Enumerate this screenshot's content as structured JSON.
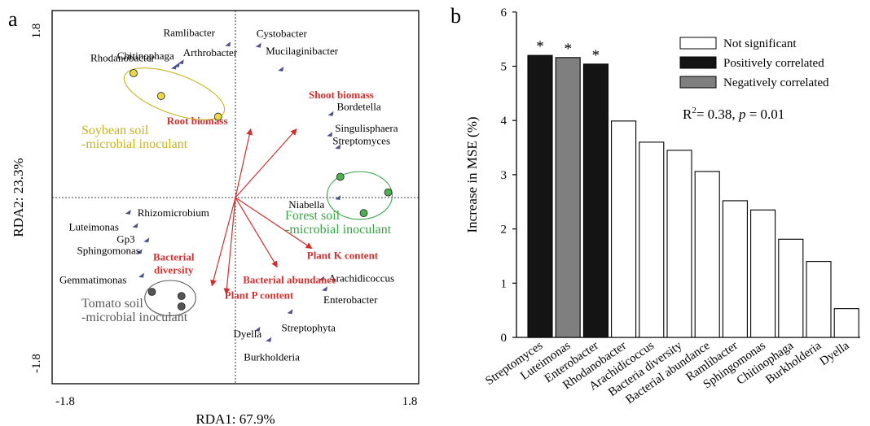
{
  "chart_data": [
    {
      "panel_label": "a",
      "type": "scatter",
      "xlabel": "RDA1: 67.9%",
      "ylabel": "RDA2: 23.3%",
      "xlim": [
        -1.8,
        1.8
      ],
      "ylim": [
        -1.8,
        1.8
      ],
      "x_ticks": [
        "-1.8",
        "1.8"
      ],
      "y_ticks": [
        "1.8",
        "-1.8"
      ],
      "grid": false,
      "reference_lines": [
        0,
        0
      ],
      "taxa": [
        {
          "name": "Ramlibacter",
          "x": -0.07,
          "y": 1.48
        },
        {
          "name": "Cystobacter",
          "x": 0.23,
          "y": 1.47
        },
        {
          "name": "Chitinophaga",
          "x": -0.57,
          "y": 1.28
        },
        {
          "name": "Arthrobacter",
          "x": -0.53,
          "y": 1.31
        },
        {
          "name": "Mucilaginibacter",
          "x": 0.45,
          "y": 1.24
        },
        {
          "name": "Rhodanobacter",
          "x": -0.6,
          "y": 1.26
        },
        {
          "name": "Bordetella",
          "x": 0.94,
          "y": 0.81
        },
        {
          "name": "Singulisphaera",
          "x": 0.93,
          "y": 0.61
        },
        {
          "name": "Streptomyces",
          "x": 1.01,
          "y": 0.49
        },
        {
          "name": "Niabella",
          "x": 1.01,
          "y": 0.0
        },
        {
          "name": "Rhizomicrobium",
          "x": -1.05,
          "y": -0.14
        },
        {
          "name": "Luteimonas",
          "x": -0.98,
          "y": -0.27
        },
        {
          "name": "Gp3",
          "x": -0.87,
          "y": -0.41
        },
        {
          "name": "Sphingomonas",
          "x": -0.94,
          "y": -0.52
        },
        {
          "name": "Gemmatimonas",
          "x": -0.92,
          "y": -0.75
        },
        {
          "name": "Arachidicoccus",
          "x": 0.85,
          "y": -0.78
        },
        {
          "name": "Enterobacter",
          "x": 0.88,
          "y": -0.88
        },
        {
          "name": "Streptophyta",
          "x": 0.54,
          "y": -1.1
        },
        {
          "name": "Dyella",
          "x": 0.22,
          "y": -1.27
        },
        {
          "name": "Burkholderia",
          "x": 0.33,
          "y": -1.37
        }
      ],
      "taxa_color": "#4d4f8a",
      "vectors": [
        {
          "label": "Shoot biomass",
          "x": 0.6,
          "y": 0.66
        },
        {
          "label": "Root biomass",
          "x": 0.15,
          "y": 0.66
        },
        {
          "label": "Plant K content",
          "x": 0.75,
          "y": -0.49
        },
        {
          "label": "Bacterial abundance",
          "x": 0.41,
          "y": -0.67
        },
        {
          "label": "Bacterial diversity",
          "x": -0.23,
          "y": -0.85
        },
        {
          "label": "Plant P content",
          "x": -0.09,
          "y": -0.93
        }
      ],
      "vector_color": "#d32f2f",
      "groups": [
        {
          "name": "Soybean soil\n-microbial inoculant",
          "color": "#c8b21e",
          "fill": "#e8d84a",
          "points": [
            {
              "x": -1.0,
              "y": 1.2
            },
            {
              "x": -0.73,
              "y": 0.98
            },
            {
              "x": -0.17,
              "y": 0.78
            }
          ],
          "ellipse": {
            "cx": -0.6,
            "cy": 1.0,
            "rx": 0.52,
            "ry": 0.19,
            "angle_deg": 20
          }
        },
        {
          "name": "Forest soil\n-microbial inoculant",
          "color": "#3aa345",
          "fill": "#4caf50",
          "points": [
            {
              "x": 1.03,
              "y": 0.2
            },
            {
              "x": 1.5,
              "y": 0.05
            },
            {
              "x": 1.26,
              "y": -0.15
            }
          ],
          "ellipse": {
            "cx": 1.22,
            "cy": 0.02,
            "rx": 0.32,
            "ry": 0.23,
            "angle_deg": 0
          }
        },
        {
          "name": "Tomato soil\n-microbial inoculant",
          "color": "#5a5a5a",
          "fill": "#555555",
          "points": [
            {
              "x": -0.82,
              "y": -0.91
            },
            {
              "x": -0.53,
              "y": -0.95
            },
            {
              "x": -0.53,
              "y": -1.05
            }
          ],
          "ellipse": {
            "cx": -0.64,
            "cy": -0.97,
            "rx": 0.25,
            "ry": 0.17,
            "angle_deg": 0
          }
        }
      ]
    },
    {
      "panel_label": "b",
      "type": "bar",
      "ylabel": "Increase in MSE (%)",
      "ylim": [
        0,
        6
      ],
      "y_ticks": [
        0,
        1,
        2,
        3,
        4,
        5,
        6
      ],
      "categories": [
        "Streptomyces",
        "Luteimonas",
        "Enterobacter",
        "Rhodanobacter",
        "Arachidicoccus",
        "Bacteria diversity",
        "Bacterial abundance",
        "Ramlibacter",
        "Sphingomonas",
        "Chitinophaga",
        "Burkholderia",
        "Dyella"
      ],
      "values": [
        5.2,
        5.16,
        5.04,
        3.99,
        3.6,
        3.45,
        3.06,
        2.52,
        2.35,
        1.81,
        1.4,
        0.53
      ],
      "significance": [
        "*",
        "*",
        "*",
        "",
        "",
        "",
        "",
        "",
        "",
        "",
        "",
        ""
      ],
      "classes": [
        "positive",
        "negative",
        "positive",
        "ns",
        "ns",
        "ns",
        "ns",
        "ns",
        "ns",
        "ns",
        "ns",
        "ns"
      ],
      "legend": [
        {
          "key": "ns",
          "label": "Not significant",
          "color": "#ffffff"
        },
        {
          "key": "positive",
          "label": "Positively correlated",
          "color": "#141414"
        },
        {
          "key": "negative",
          "label": "Negatively correlated",
          "color": "#7f7f7f"
        }
      ],
      "legend_position": "top-right",
      "stats": {
        "r_squared_prefix": "R",
        "r_squared_sup": "2",
        "r_squared_value": "= 0.38, ",
        "p_symbol": "p",
        "p_value": " = 0.01"
      },
      "grid": false
    }
  ]
}
